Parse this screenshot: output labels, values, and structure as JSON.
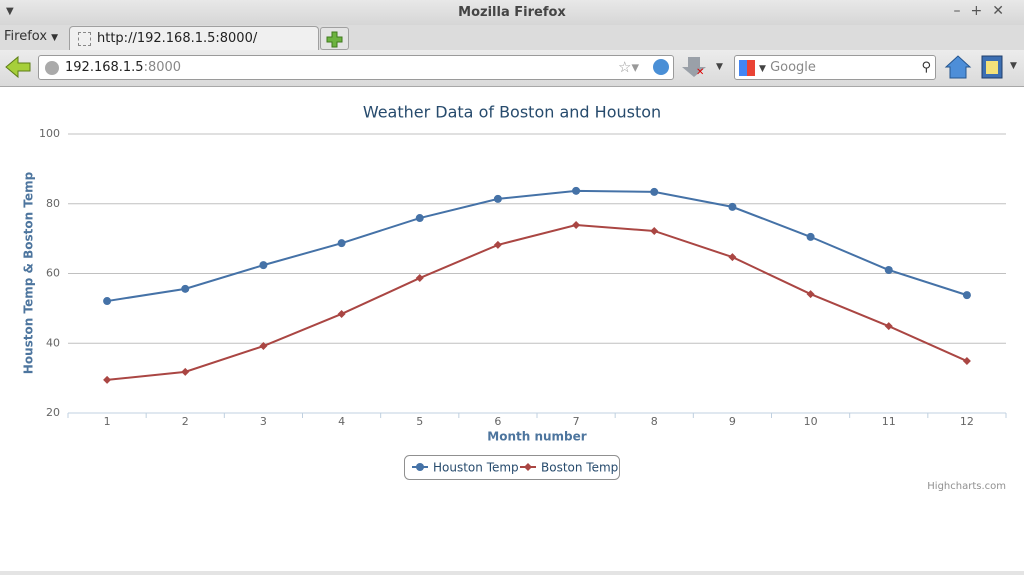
{
  "window": {
    "title": "Mozilla Firefox"
  },
  "tabs": {
    "menu": "Firefox",
    "active_tab": "http://192.168.1.5:8000/"
  },
  "toolbar": {
    "url_host": "192.168.1.5",
    "url_port": ":8000",
    "search_placeholder": "Google"
  },
  "chart_data": {
    "type": "line",
    "title": "Weather Data of Boston and Houston",
    "x_label": "Month number",
    "y_label": "Houston Temp & Boston Temp",
    "categories": [
      "1",
      "2",
      "3",
      "4",
      "5",
      "6",
      "7",
      "8",
      "9",
      "10",
      "11",
      "12"
    ],
    "series": [
      {
        "name": "Houston Temp",
        "color": "#4572A7",
        "marker": "circle",
        "values": [
          52.1,
          55.6,
          62.4,
          68.7,
          75.9,
          81.4,
          83.7,
          83.4,
          79.1,
          70.5,
          61,
          53.8
        ]
      },
      {
        "name": "Boston Temp",
        "color": "#AA4643",
        "marker": "diamond",
        "values": [
          29.5,
          31.8,
          39.2,
          48.4,
          58.7,
          68.2,
          73.9,
          72.2,
          64.7,
          54.1,
          44.9,
          34.9
        ]
      }
    ],
    "ylim": [
      20,
      100
    ],
    "yticks": [
      20,
      40,
      60,
      80,
      100
    ],
    "grid": true,
    "legend": "bottom",
    "credits": "Highcharts.com"
  }
}
